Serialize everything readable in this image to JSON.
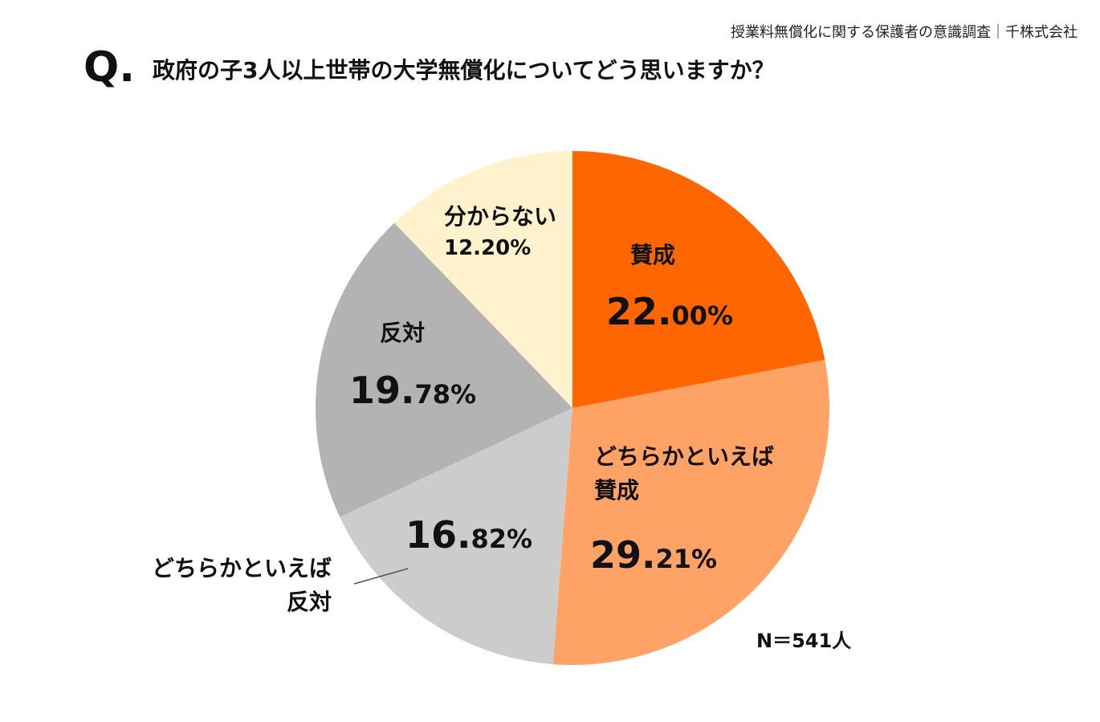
{
  "source": "授業料無償化に関する保護者の意識調査｜千株式会社",
  "question": {
    "mark": "Q.",
    "text": "政府の子3人以上世帯の大学無償化についてどう思いますか？"
  },
  "sample_size": "N＝541人",
  "chart_data": {
    "type": "pie",
    "title": "政府の子3人以上世帯の大学無償化についてどう思いますか？",
    "start": "12 o'clock",
    "direction": "clockwise",
    "slices": [
      {
        "label": "賛成",
        "label_lines": [
          "賛成"
        ],
        "value": 22.0,
        "display_int": "22.",
        "display_dec": "00%",
        "color": "#ff6600"
      },
      {
        "label": "どちらかといえば賛成",
        "label_lines": [
          "どちらかといえば",
          "賛成"
        ],
        "value": 29.21,
        "display_int": "29.",
        "display_dec": "21%",
        "color": "#ffa265"
      },
      {
        "label": "どちらかといえば反対",
        "label_lines": [
          "どちらかといえば",
          "反対"
        ],
        "value": 16.82,
        "display_int": "16.",
        "display_dec": "82%",
        "color": "#cccccc"
      },
      {
        "label": "反対",
        "label_lines": [
          "反対"
        ],
        "value": 19.78,
        "display_int": "19.",
        "display_dec": "78%",
        "color": "#b3b3b3"
      },
      {
        "label": "分からない",
        "label_lines": [
          "分からない"
        ],
        "value": 12.2,
        "display_int": "",
        "display_dec": "12.20%",
        "color": "#fff2cc"
      }
    ]
  }
}
